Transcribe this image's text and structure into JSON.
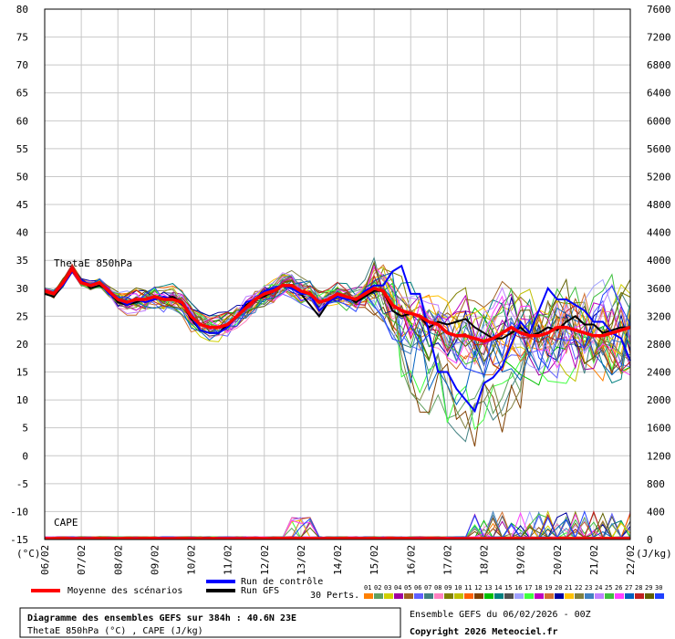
{
  "chart_data": {
    "type": "line",
    "x_dates": [
      "06/02",
      "07/02",
      "08/02",
      "09/02",
      "10/02",
      "11/02",
      "12/02",
      "13/02",
      "14/02",
      "15/02",
      "16/02",
      "17/02",
      "18/02",
      "19/02",
      "20/02",
      "21/02",
      "22/02"
    ],
    "left_axis_unit": "(°C)",
    "right_axis_unit": "(J/kg)",
    "ylim_left": [
      -15,
      80
    ],
    "ylim_right": [
      0,
      7600
    ],
    "left_ticks": [
      80,
      75,
      70,
      65,
      60,
      55,
      50,
      45,
      40,
      35,
      30,
      25,
      20,
      15,
      10,
      5,
      0,
      -5,
      -10,
      -15
    ],
    "right_ticks": [
      7600,
      7200,
      6800,
      6400,
      6000,
      5600,
      5200,
      4800,
      4400,
      4000,
      3600,
      3200,
      2800,
      2400,
      2000,
      1600,
      1200,
      800,
      400,
      0
    ],
    "theta_label": "ThetaE 850hPa",
    "cape_label": "CAPE",
    "mean_series": {
      "name": "Moyenne des scénarios",
      "color": "#ff0000",
      "days": [
        0,
        0.25,
        0.5,
        0.75,
        1,
        1.25,
        1.5,
        1.75,
        2,
        2.25,
        2.5,
        2.75,
        3,
        3.25,
        3.5,
        3.75,
        4,
        4.25,
        4.5,
        4.75,
        5,
        5.25,
        5.5,
        5.75,
        6,
        6.25,
        6.5,
        6.75,
        7,
        7.25,
        7.5,
        7.75,
        8,
        8.25,
        8.5,
        8.75,
        9,
        9.25,
        9.5,
        9.75,
        10,
        10.25,
        10.5,
        10.75,
        11,
        11.25,
        11.5,
        11.75,
        12,
        12.25,
        12.5,
        12.75,
        13,
        13.25,
        13.5,
        13.75,
        14,
        14.25,
        14.5,
        14.75,
        15,
        15.25,
        15.5,
        15.75,
        16
      ],
      "values": [
        29.5,
        29,
        31,
        33.5,
        31,
        30.5,
        31,
        29.5,
        28,
        27.5,
        28,
        28,
        28.5,
        28,
        28,
        27.5,
        25,
        23.5,
        23,
        23,
        23.5,
        25,
        26.5,
        28,
        29,
        29.5,
        30.5,
        30.5,
        29.5,
        29,
        27.5,
        28,
        29,
        28.5,
        28,
        29,
        30,
        29.5,
        27,
        26,
        25.5,
        25,
        24,
        23.5,
        22,
        21.5,
        21.5,
        21,
        20.5,
        21,
        22,
        23,
        22,
        21.5,
        21.5,
        22,
        23,
        23,
        22.5,
        22,
        21.5,
        21.5,
        22,
        22.5,
        23
      ]
    },
    "control_series": {
      "name": "Run de contrôle",
      "color": "#0000ff",
      "values": [
        29.5,
        29,
        30.5,
        33,
        31.5,
        30.5,
        31,
        29,
        28,
        27,
        28,
        27.5,
        28,
        28.5,
        28,
        27.5,
        25,
        22.5,
        22,
        22,
        23,
        25,
        27.5,
        28,
        29.5,
        30,
        30.5,
        30,
        29,
        29,
        26,
        27.5,
        28.5,
        28,
        28,
        29.5,
        30.5,
        30.5,
        33,
        34,
        29,
        29,
        22,
        15,
        15,
        12,
        10,
        8,
        13,
        14,
        16,
        20,
        24,
        22,
        26,
        30,
        28,
        28,
        27,
        26,
        24,
        24,
        22,
        21,
        17
      ]
    },
    "gfs_series": {
      "name": "Run GFS",
      "color": "#000000",
      "values": [
        29,
        28.5,
        30.5,
        33,
        31.5,
        30,
        30.5,
        29.5,
        27.5,
        27,
        27.5,
        28,
        28.5,
        28,
        28.5,
        27.5,
        24.5,
        22.5,
        22,
        22,
        23.5,
        25,
        27,
        28,
        28.5,
        29.5,
        30.5,
        30,
        29,
        27,
        25,
        27.5,
        29,
        28.5,
        27.5,
        28.5,
        29.5,
        29.5,
        26,
        25,
        25.5,
        25,
        23,
        24,
        23.5,
        24,
        24.5,
        23,
        22,
        21,
        21,
        22,
        23,
        21.5,
        22,
        23,
        22.5,
        24,
        25,
        23.5,
        23.5,
        22,
        22.5,
        23,
        23
      ]
    },
    "perturbations_label": "30 Perts.",
    "perturbation_ids": [
      "01",
      "02",
      "03",
      "04",
      "05",
      "06",
      "07",
      "08",
      "09",
      "10",
      "11",
      "12",
      "13",
      "14",
      "15",
      "16",
      "17",
      "18",
      "19",
      "20",
      "21",
      "22",
      "23",
      "24",
      "25",
      "26",
      "27",
      "28",
      "29",
      "30"
    ],
    "perturbation_colors": [
      "#ff8000",
      "#60a060",
      "#d0d000",
      "#a000a0",
      "#a06020",
      "#6060ff",
      "#408080",
      "#ff80c0",
      "#808000",
      "#c0c000",
      "#ff6000",
      "#804000",
      "#00c000",
      "#008080",
      "#505050",
      "#a0a0ff",
      "#40ff40",
      "#c000c0",
      "#d07030",
      "#0000a0",
      "#ffc000",
      "#808040",
      "#4080c0",
      "#c080ff",
      "#40c040",
      "#ff40ff",
      "#0060c0",
      "#c02020",
      "#606000",
      "#2040ff"
    ],
    "info_title": "Diagramme des ensembles GEFS sur 384h : 40.6N 23E",
    "info_sub": "ThetaE 850hPa (°C) , CAPE (J/kg)",
    "run_info": "Ensemble GEFS du 06/02/2026 - 00Z",
    "copyright": "Copyright 2026 Meteociel.fr"
  }
}
